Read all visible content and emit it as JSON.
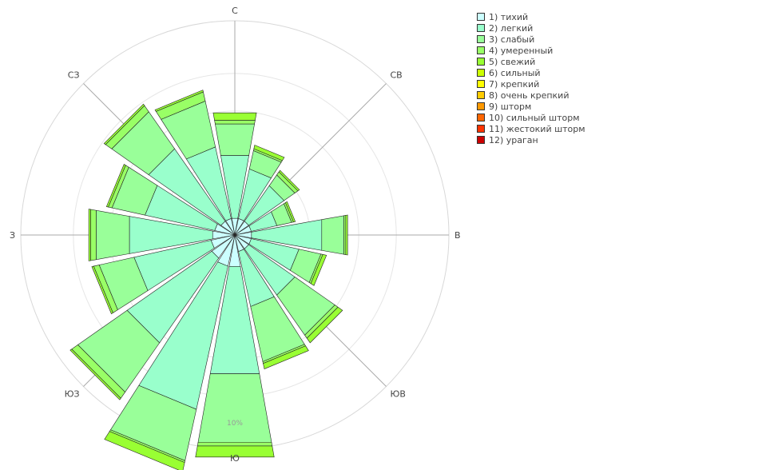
{
  "chart_data": {
    "type": "windrose",
    "title": "",
    "directions": [
      "С",
      "",
      "СВ",
      "",
      "В",
      "",
      "ЮВ",
      "",
      "Ю",
      "",
      "ЮЗ",
      "",
      "З",
      "",
      "СЗ",
      ""
    ],
    "labeled_directions": {
      "north": "С",
      "northeast": "СВ",
      "east": "В",
      "southeast": "ЮВ",
      "south": "Ю",
      "southwest": "ЮЗ",
      "west": "З",
      "northwest": "СЗ"
    },
    "radial_tick_label": "10%",
    "radial_tick_value": 10,
    "radial_max": 11.4,
    "series": [
      {
        "name": "1) тихий",
        "color": "#ccffff",
        "values": [
          0.9,
          0.9,
          0.9,
          0.9,
          0.9,
          0.9,
          0.9,
          0.9,
          1.7,
          1.7,
          1.5,
          1.3,
          1.2,
          1.1,
          0.9,
          0.9
        ]
      },
      {
        "name": "2) легкий",
        "color": "#99ffcc",
        "values": [
          3.4,
          2.7,
          2.3,
          1.4,
          3.8,
          2.6,
          3.0,
          3.0,
          5.8,
          7.8,
          5.5,
          4.2,
          4.5,
          3.8,
          4.7,
          3.9
        ]
      },
      {
        "name": "3) слабый",
        "color": "#99ff99",
        "values": [
          1.7,
          1.0,
          0.7,
          0.8,
          1.2,
          1.2,
          2.6,
          3.0,
          3.7,
          2.8,
          3.2,
          1.9,
          1.8,
          1.8,
          2.4,
          2.5
        ]
      },
      {
        "name": "4) умеренный",
        "color": "#99ff66",
        "values": [
          0.2,
          0.1,
          0.2,
          0.1,
          0.1,
          0.1,
          0.2,
          0.1,
          0.2,
          0.1,
          0.4,
          0.3,
          0.3,
          0.2,
          0.4,
          0.5
        ]
      },
      {
        "name": "5) свежий",
        "color": "#99ff33",
        "values": [
          0.4,
          0.2,
          0.1,
          0.1,
          0.1,
          0.2,
          0.3,
          0.3,
          0.6,
          0.5,
          0.1,
          0.1,
          0.1,
          0.1,
          0.1,
          0.1
        ]
      },
      {
        "name": "6) сильный",
        "color": "#ccff00",
        "values": [
          0,
          0,
          0,
          0,
          0,
          0,
          0,
          0,
          0,
          0,
          0,
          0,
          0,
          0,
          0,
          0
        ]
      },
      {
        "name": "7) крепкий",
        "color": "#ffff00",
        "values": [
          0,
          0,
          0,
          0,
          0,
          0,
          0,
          0,
          0,
          0,
          0,
          0,
          0,
          0,
          0,
          0
        ]
      },
      {
        "name": "8) очень крепкий",
        "color": "#ffcc00",
        "values": [
          0,
          0,
          0,
          0,
          0,
          0,
          0,
          0,
          0,
          0,
          0,
          0,
          0,
          0,
          0,
          0
        ]
      },
      {
        "name": "9) шторм",
        "color": "#ff9900",
        "values": [
          0,
          0,
          0,
          0,
          0,
          0,
          0,
          0,
          0,
          0,
          0,
          0,
          0,
          0,
          0,
          0
        ]
      },
      {
        "name": "10) сильный шторм",
        "color": "#ff6600",
        "values": [
          0,
          0,
          0,
          0,
          0,
          0,
          0,
          0,
          0,
          0,
          0,
          0,
          0,
          0,
          0,
          0
        ]
      },
      {
        "name": "11) жестокий шторм",
        "color": "#ff3300",
        "values": [
          0,
          0,
          0,
          0,
          0,
          0,
          0,
          0,
          0,
          0,
          0,
          0,
          0,
          0,
          0,
          0
        ]
      },
      {
        "name": "12) ураган",
        "color": "#cc0000",
        "values": [
          0,
          0,
          0,
          0,
          0,
          0,
          0,
          0,
          0,
          0,
          0,
          0,
          0,
          0,
          0,
          0
        ]
      }
    ],
    "legend_position": "top-right",
    "grid": true
  }
}
